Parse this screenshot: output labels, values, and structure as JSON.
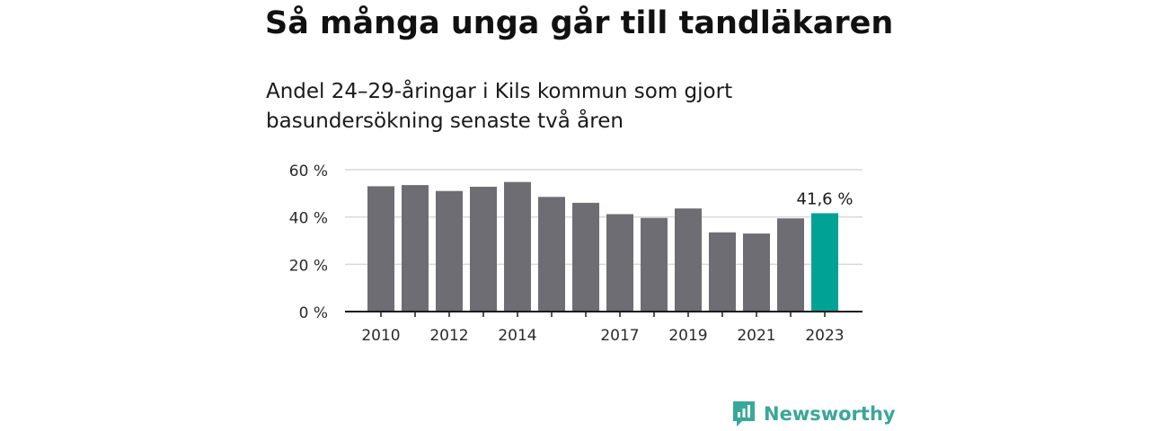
{
  "title": "Så många unga går till tandläkaren",
  "subtitle": "Andel 24–29-åringar i Kils kommun som gjort basundersökning senaste två åren",
  "brand": {
    "name": "Newsworthy",
    "icon": "newsworthy-logo-icon",
    "color": "#3aa79b"
  },
  "chart_data": {
    "type": "bar",
    "categories": [
      "2010",
      "2011",
      "2012",
      "2013",
      "2014",
      "2015",
      "2016",
      "2017",
      "2018",
      "2019",
      "2020",
      "2021",
      "2022",
      "2023"
    ],
    "values": [
      53.0,
      53.5,
      51.0,
      52.8,
      54.8,
      48.5,
      46.0,
      41.2,
      39.6,
      43.6,
      33.5,
      33.0,
      39.4,
      41.6
    ],
    "tick_labels": [
      "2010",
      "",
      "2012",
      "",
      "2014",
      "",
      "",
      "2017",
      "",
      "2019",
      "",
      "2021",
      "",
      "2023"
    ],
    "y_ticks": [
      0,
      20,
      40,
      60
    ],
    "y_tick_labels": [
      "0 %",
      "20 %",
      "40 %",
      "60 %"
    ],
    "ylim": [
      0,
      60
    ],
    "grid": true,
    "annotation": {
      "index": 13,
      "text": "41,6 %"
    },
    "colors": {
      "bar": "#6e6d73",
      "highlight": "#00a296",
      "grid": "#d9d9d9",
      "axis": "#1a1a1a"
    }
  }
}
